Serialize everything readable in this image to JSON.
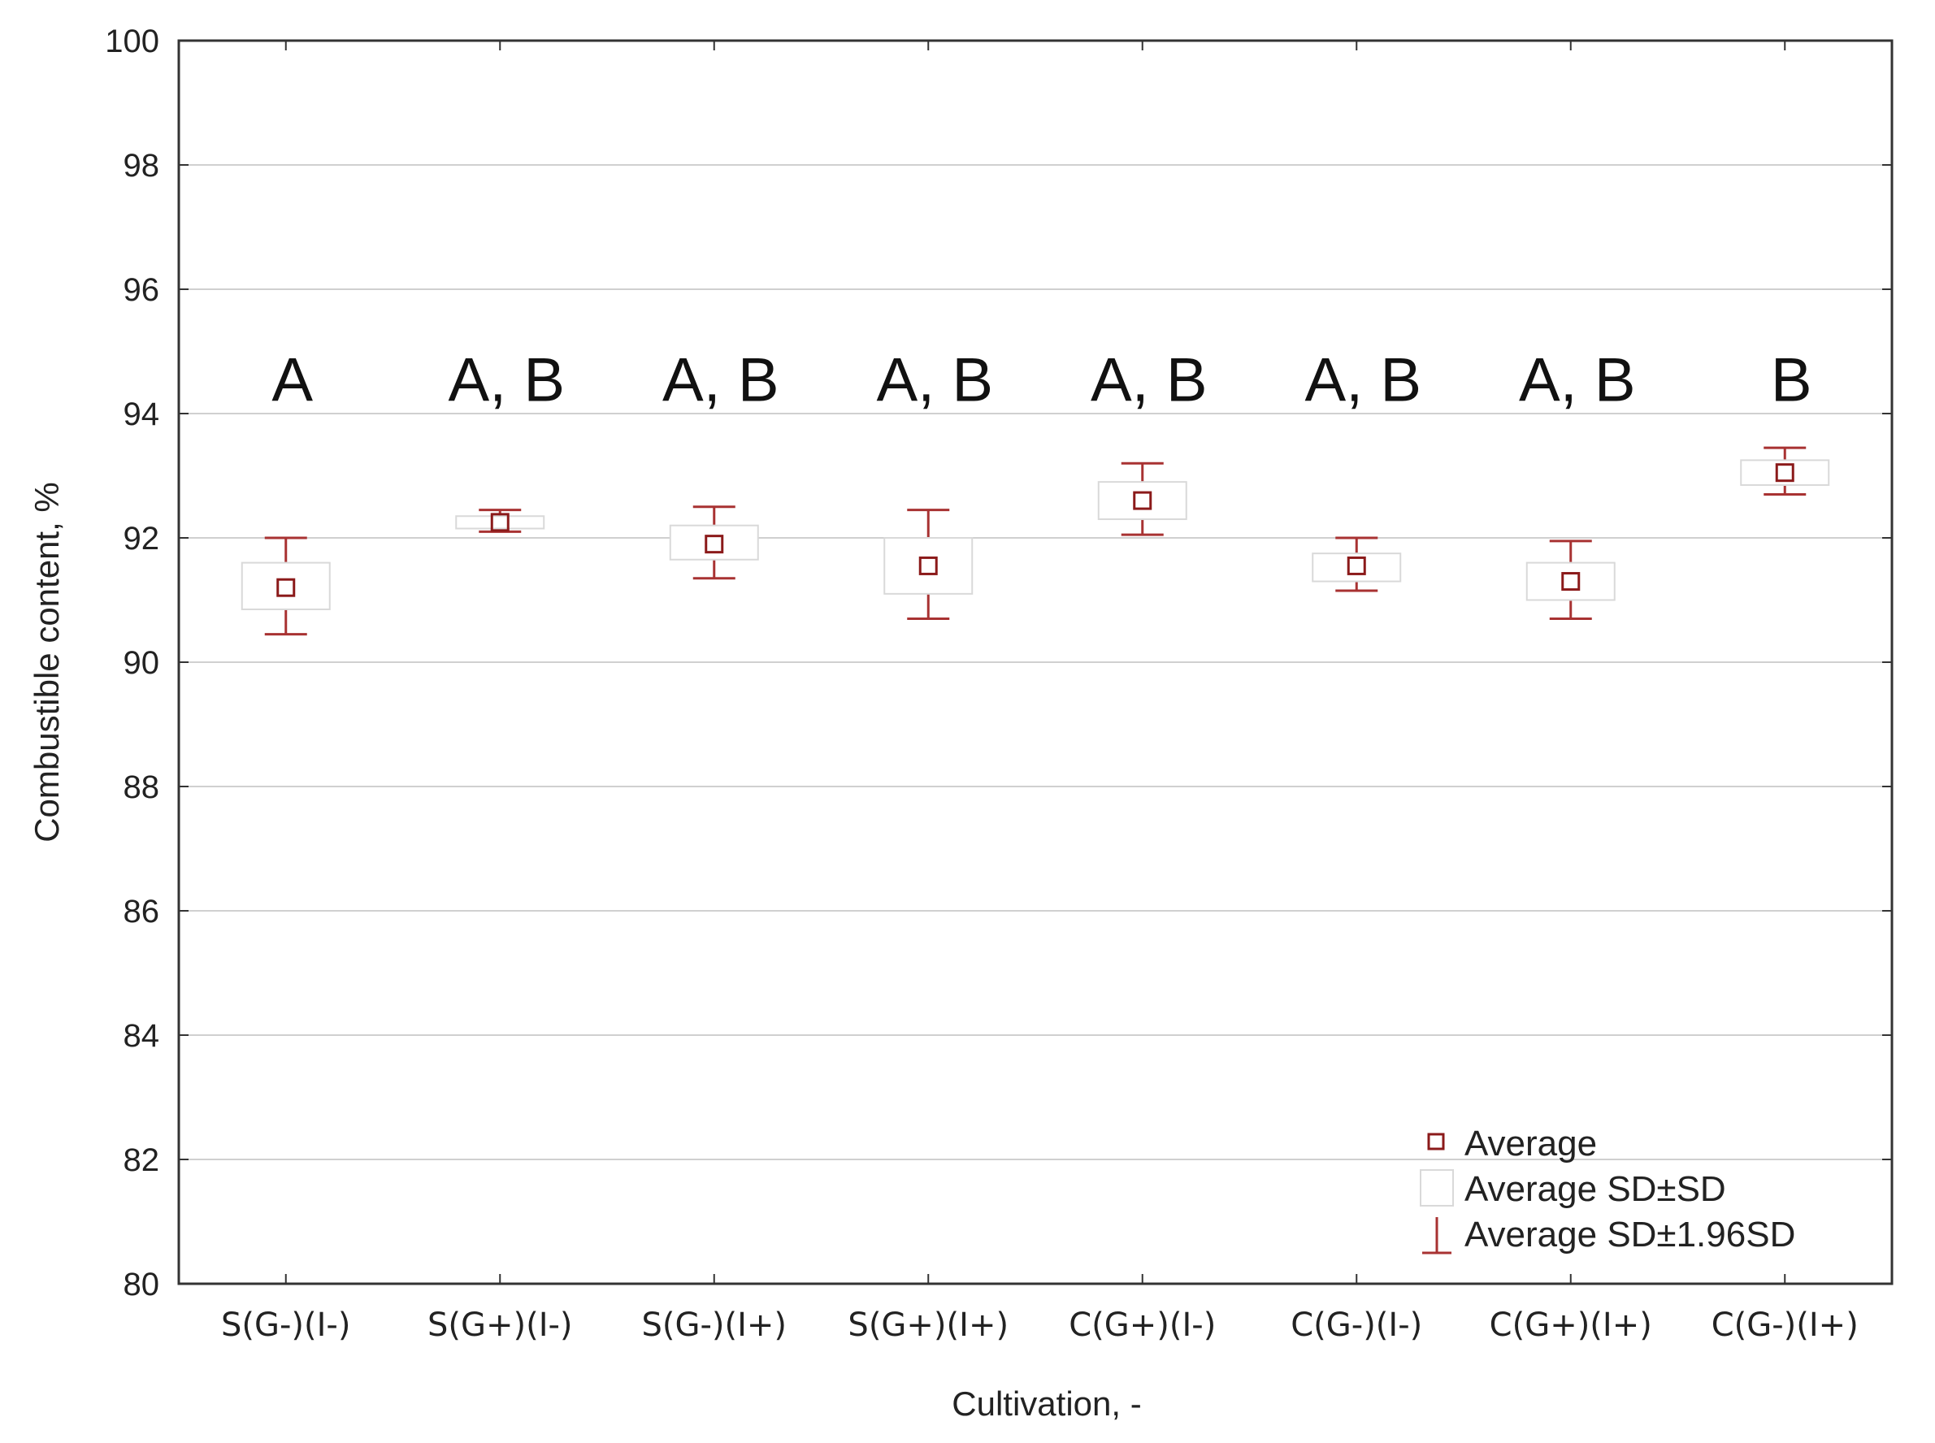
{
  "chart_data": {
    "type": "box",
    "xlabel": "Cultivation, -",
    "ylabel": "Combustible content, %",
    "ylim": [
      80,
      100
    ],
    "yticks": [
      "80",
      "82",
      "84",
      "86",
      "88",
      "90",
      "92",
      "94",
      "96",
      "98",
      "100"
    ],
    "grid": true,
    "legend_position": "bottom-right",
    "categories": [
      "S(G-)(I-)",
      "S(G+)(I-)",
      "S(G-)(I+)",
      "S(G+)(I+)",
      "C(G+)(I-)",
      "C(G-)(I-)",
      "C(G+)(I+)",
      "C(G-)(I+)"
    ],
    "average": [
      91.2,
      92.25,
      91.9,
      91.55,
      92.6,
      91.55,
      91.3,
      93.05
    ],
    "sd_low": [
      90.85,
      92.15,
      91.65,
      91.1,
      92.3,
      91.3,
      91.0,
      92.85
    ],
    "sd_high": [
      91.6,
      92.35,
      92.2,
      92.0,
      92.9,
      91.75,
      91.6,
      93.25
    ],
    "ci_low": [
      90.45,
      92.1,
      91.35,
      90.7,
      92.05,
      91.15,
      90.7,
      92.7
    ],
    "ci_high": [
      92.0,
      92.45,
      92.5,
      92.45,
      93.2,
      92.0,
      91.95,
      93.45
    ],
    "group_labels": [
      "A",
      "A, B",
      "A, B",
      "A, B",
      "A, B",
      "A, B",
      "A, B",
      "B"
    ],
    "legend": [
      "Average",
      "Average SD±SD",
      "Average SD±1.96SD"
    ],
    "colors": {
      "mean": "#8b1a1a",
      "whisker": "#a83232",
      "box": "#d9d9d9",
      "grid": "#d0d0d0",
      "frame": "#333333"
    }
  }
}
